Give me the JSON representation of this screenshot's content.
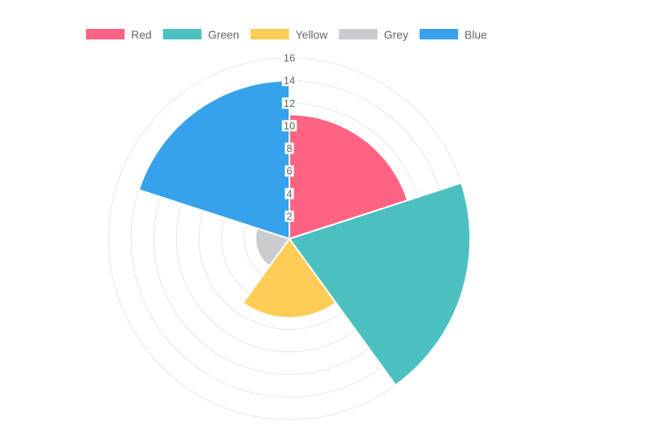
{
  "chart_data": {
    "type": "polarArea",
    "categories": [
      "Red",
      "Green",
      "Yellow",
      "Grey",
      "Blue"
    ],
    "values": [
      11,
      16,
      7,
      3,
      14
    ],
    "colors": [
      "#ff6384",
      "#4bc0c0",
      "#ffcd56",
      "#c9cbcf",
      "#36a2eb"
    ],
    "legend": {
      "position": "top",
      "entries": [
        "Red",
        "Green",
        "Yellow",
        "Grey",
        "Blue"
      ]
    },
    "radial_axis": {
      "min": 0,
      "max": 16,
      "step": 2,
      "tick_labels": [
        "2",
        "4",
        "6",
        "8",
        "10",
        "12",
        "14",
        "16"
      ]
    },
    "grid": true,
    "title": ""
  }
}
